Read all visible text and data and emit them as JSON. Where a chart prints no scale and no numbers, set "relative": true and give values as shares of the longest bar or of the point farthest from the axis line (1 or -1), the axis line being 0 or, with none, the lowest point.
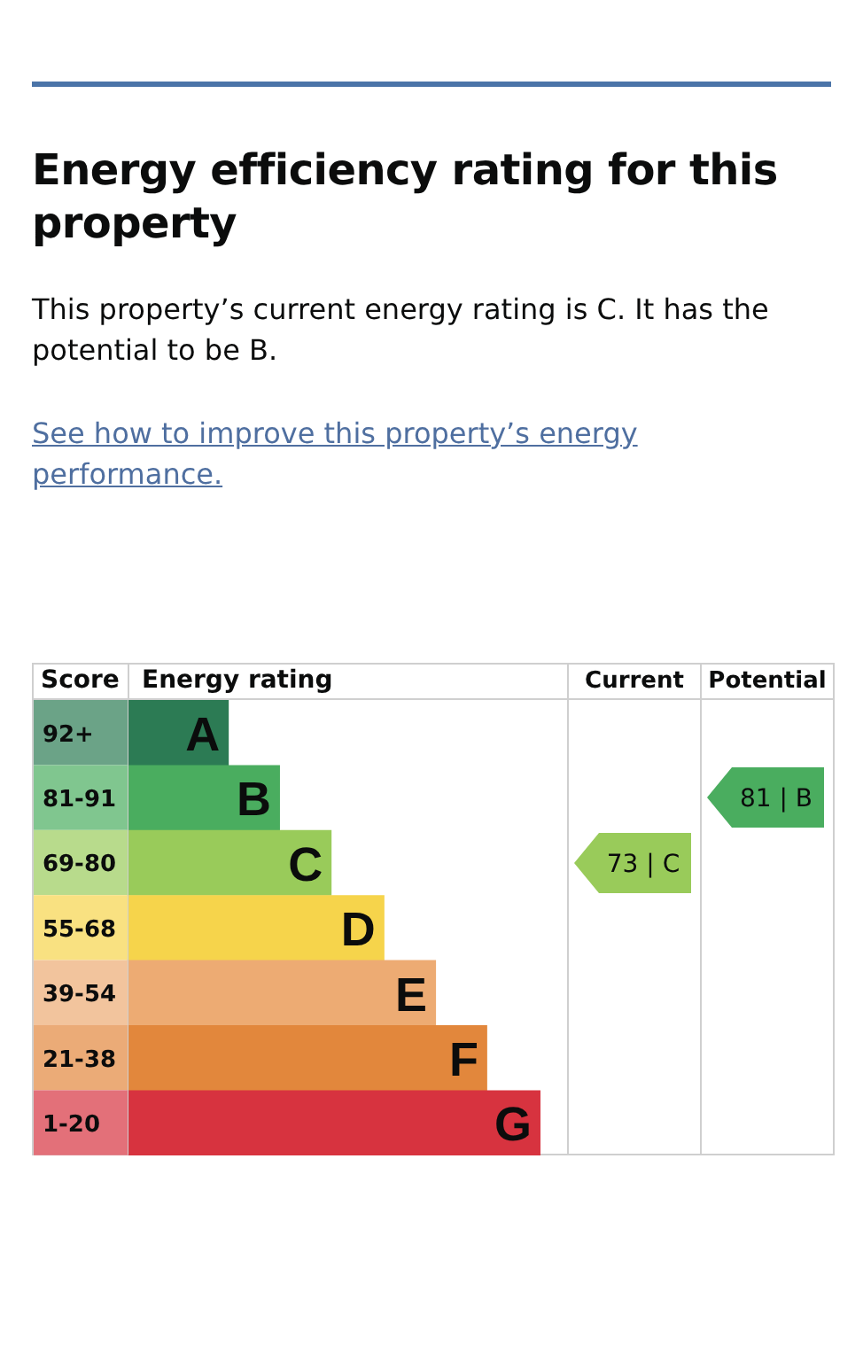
{
  "chart_data": {
    "type": "bar",
    "orientation": "horizontal",
    "relative": true,
    "title": "Energy efficiency rating for this property",
    "subtitle": "This property’s current energy rating is C. It has the potential to be B.",
    "ylabel": "Score",
    "xlabel": "Energy rating",
    "categories": [
      "92+",
      "81-91",
      "69-80",
      "55-68",
      "39-54",
      "21-38",
      "1-20"
    ],
    "values": [
      0.245,
      0.369,
      0.494,
      0.622,
      0.747,
      0.871,
      1
    ],
    "colors": [
      "#2c7b54",
      "#4aad5f",
      "#99cb5a",
      "#f6d44b",
      "#edab73",
      "#e2873c",
      "#d7333f"
    ],
    "annotations": [
      "See how to improve this property’s energy performance.",
      "A",
      "B",
      "C",
      "D",
      "E",
      "F",
      "G",
      "Current",
      "73 | C",
      "Potential",
      "81 | B"
    ]
  }
}
